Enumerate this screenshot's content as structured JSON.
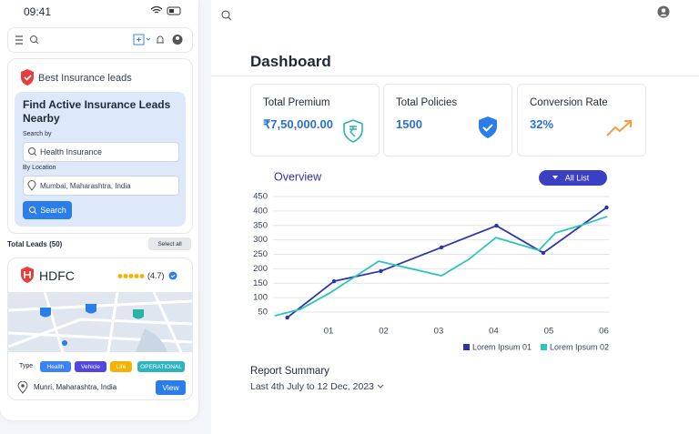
{
  "status_bar": {
    "time": "09:41"
  },
  "lead_search": {
    "brand": "Best Insurance leads",
    "heading": "Find Active Insurance Leads Nearby",
    "search_label": "Search by",
    "search_value": "Health Insurance",
    "location_label": "By Location",
    "location_value": "Mumbai, Maharashtra, India",
    "button": "Search"
  },
  "leads": {
    "total": "Total Leads (50)",
    "select_all": "Select all",
    "card": {
      "name": "HDFC",
      "rating": "(4.7)",
      "type_label": "Type",
      "tags": [
        "Health",
        "Vehicle",
        "Life",
        "OPERATIONAL"
      ],
      "address": "Munri, Maharashtra, India",
      "button": "View"
    }
  },
  "dashboard": {
    "title": "Dashboard",
    "stats": [
      {
        "label": "Total Premium",
        "value": "₹7,50,000.00"
      },
      {
        "label": "Total Policies",
        "value": "1500"
      },
      {
        "label": "Conversion Rate",
        "value": "32%"
      }
    ],
    "report": {
      "title": "Report Summary",
      "range": "Last 4th July to 12 Dec, 2023"
    }
  },
  "chart_data": {
    "type": "line",
    "title": "Overview",
    "filter": "All List",
    "xlim": [
      0,
      6.1
    ],
    "xticks": [
      {
        "value": 1,
        "label": "01"
      },
      {
        "value": 2,
        "label": "02"
      },
      {
        "value": 3,
        "label": "03"
      },
      {
        "value": 4,
        "label": "04"
      },
      {
        "value": 5,
        "label": "05"
      },
      {
        "value": 6,
        "label": "06"
      }
    ],
    "ylim": [
      30,
      450
    ],
    "yticks": [
      50,
      100,
      150,
      200,
      250,
      300,
      350,
      400,
      450
    ],
    "grid": true,
    "series": [
      {
        "name": "Lorem Ipsum 01",
        "color": "#2e35a8",
        "markers": true,
        "x": [
          0.25,
          1.1,
          1.95,
          3.05,
          4.05,
          4.9,
          6.05
        ],
        "values": [
          31,
          157,
          192,
          274,
          349,
          255,
          412
        ]
      },
      {
        "name": "Lorem Ipsum 02",
        "color": "#2cc4c0",
        "markers": false,
        "x": [
          0.02,
          0.49,
          1.02,
          1.91,
          3.05,
          3.55,
          4.04,
          4.82,
          5.12,
          5.61,
          6.06
        ],
        "values": [
          37,
          60,
          116,
          226,
          176,
          233,
          308,
          264,
          324,
          352,
          381
        ]
      }
    ]
  }
}
